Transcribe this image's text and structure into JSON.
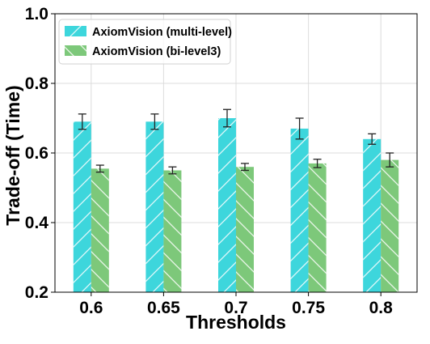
{
  "chart_data": {
    "type": "bar",
    "title": "",
    "xlabel": "Thresholds",
    "ylabel": "Trade-off (Time)",
    "categories": [
      "0.6",
      "0.65",
      "0.7",
      "0.75",
      "0.8"
    ],
    "ylim": [
      0.2,
      1.0
    ],
    "yticks": [
      "0.2",
      "0.4",
      "0.6",
      "0.8",
      "1.0"
    ],
    "grid": true,
    "legend_position": "top-left",
    "series": [
      {
        "name": "AxiomVision (multi-level)",
        "color": "#3dd6dc",
        "hatch": "diagonal",
        "values": [
          0.69,
          0.69,
          0.7,
          0.67,
          0.64
        ],
        "errors": [
          0.022,
          0.022,
          0.025,
          0.03,
          0.015
        ]
      },
      {
        "name": "AxiomVision (bi-level3)",
        "color": "#7dc87a",
        "hatch": "back-diagonal",
        "values": [
          0.555,
          0.55,
          0.56,
          0.57,
          0.58
        ],
        "errors": [
          0.01,
          0.01,
          0.01,
          0.012,
          0.02
        ]
      }
    ]
  }
}
